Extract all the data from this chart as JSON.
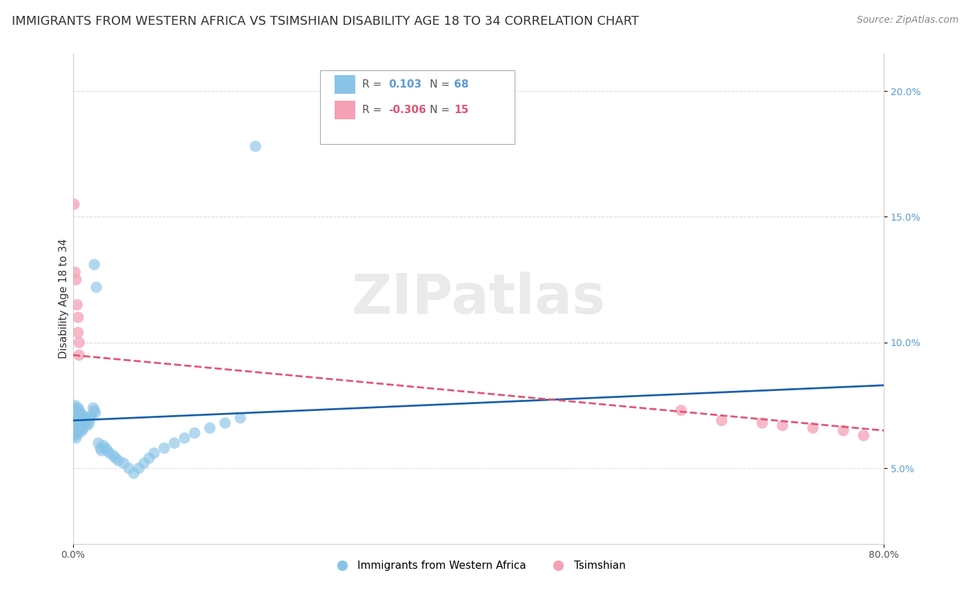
{
  "title": "IMMIGRANTS FROM WESTERN AFRICA VS TSIMSHIAN DISABILITY AGE 18 TO 34 CORRELATION CHART",
  "source": "Source: ZipAtlas.com",
  "ylabel": "Disability Age 18 to 34",
  "xlabel_blue": "Immigrants from Western Africa",
  "xlabel_pink": "Tsimshian",
  "blue_color": "#89c4e8",
  "pink_color": "#f5a0b5",
  "blue_line_color": "#1a5fa8",
  "pink_line_color": "#e05575",
  "watermark": "ZIPatlas",
  "xmin": 0.0,
  "xmax": 0.8,
  "ymin": 0.02,
  "ymax": 0.215,
  "yticks": [
    0.05,
    0.1,
    0.15,
    0.2
  ],
  "ytick_labels": [
    "5.0%",
    "10.0%",
    "15.0%",
    "20.0%"
  ],
  "xtick_labels": [
    "0.0%",
    "80.0%"
  ],
  "blue_x": [
    0.001,
    0.001,
    0.001,
    0.001,
    0.001,
    0.002,
    0.002,
    0.002,
    0.002,
    0.003,
    0.003,
    0.003,
    0.003,
    0.004,
    0.004,
    0.004,
    0.005,
    0.005,
    0.005,
    0.006,
    0.006,
    0.006,
    0.007,
    0.007,
    0.008,
    0.008,
    0.009,
    0.009,
    0.01,
    0.01,
    0.011,
    0.012,
    0.013,
    0.014,
    0.015,
    0.016,
    0.017,
    0.018,
    0.02,
    0.021,
    0.022,
    0.025,
    0.027,
    0.028,
    0.03,
    0.032,
    0.034,
    0.036,
    0.04,
    0.042,
    0.045,
    0.05,
    0.055,
    0.06,
    0.065,
    0.07,
    0.075,
    0.08,
    0.09,
    0.1,
    0.11,
    0.12,
    0.135,
    0.15,
    0.165,
    0.18,
    0.021,
    0.023
  ],
  "blue_y": [
    0.074,
    0.071,
    0.068,
    0.065,
    0.063,
    0.075,
    0.07,
    0.067,
    0.063,
    0.072,
    0.069,
    0.066,
    0.062,
    0.073,
    0.068,
    0.064,
    0.074,
    0.07,
    0.065,
    0.073,
    0.068,
    0.064,
    0.072,
    0.067,
    0.071,
    0.066,
    0.07,
    0.065,
    0.071,
    0.066,
    0.069,
    0.068,
    0.07,
    0.067,
    0.069,
    0.068,
    0.07,
    0.071,
    0.074,
    0.073,
    0.072,
    0.06,
    0.058,
    0.057,
    0.059,
    0.058,
    0.057,
    0.056,
    0.055,
    0.054,
    0.053,
    0.052,
    0.05,
    0.048,
    0.05,
    0.052,
    0.054,
    0.056,
    0.058,
    0.06,
    0.062,
    0.064,
    0.066,
    0.068,
    0.07,
    0.178,
    0.131,
    0.122
  ],
  "pink_x": [
    0.001,
    0.002,
    0.003,
    0.004,
    0.005,
    0.005,
    0.006,
    0.006,
    0.6,
    0.64,
    0.68,
    0.7,
    0.73,
    0.76,
    0.78
  ],
  "pink_y": [
    0.155,
    0.128,
    0.125,
    0.115,
    0.11,
    0.104,
    0.1,
    0.095,
    0.073,
    0.069,
    0.068,
    0.067,
    0.066,
    0.065,
    0.063
  ],
  "blue_line_x0": 0.0,
  "blue_line_x1": 0.8,
  "blue_line_y0": 0.069,
  "blue_line_y1": 0.083,
  "pink_line_x0": 0.0,
  "pink_line_x1": 0.8,
  "pink_line_y0": 0.095,
  "pink_line_y1": 0.065,
  "title_fontsize": 13,
  "axis_label_fontsize": 11,
  "tick_fontsize": 10,
  "legend_fontsize": 11,
  "source_fontsize": 10
}
